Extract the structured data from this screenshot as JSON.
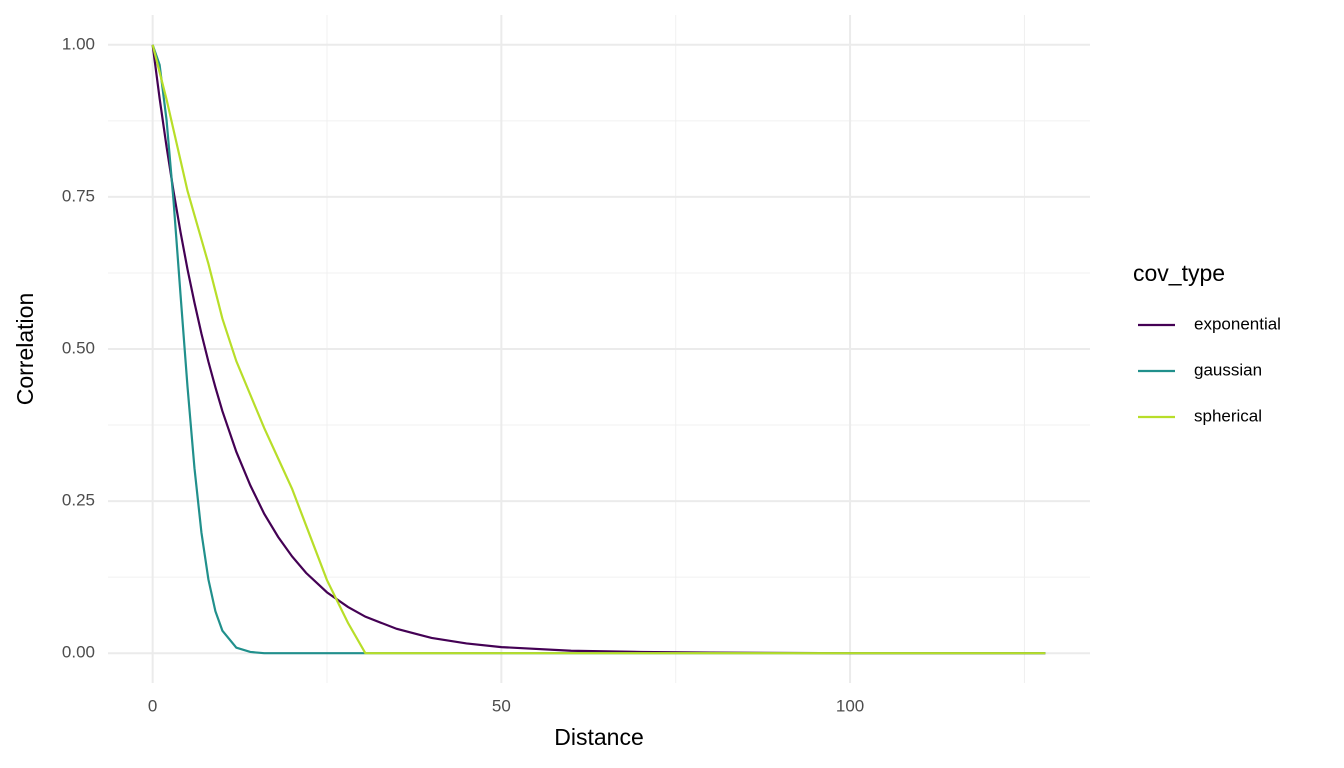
{
  "chart_data": {
    "type": "line",
    "x_label": "Distance",
    "y_label": "Correlation",
    "legend_title": "cov_type",
    "legend_position": "right",
    "x": [
      0,
      1,
      2,
      3,
      4,
      5,
      6,
      7,
      8,
      9,
      10,
      12,
      14,
      16,
      18,
      20,
      22,
      25,
      28,
      30.5,
      35,
      40,
      45,
      50,
      60,
      70,
      80,
      100,
      128
    ],
    "series": [
      {
        "name": "exponential",
        "color": "#440154",
        "values": [
          1,
          0.912,
          0.832,
          0.759,
          0.692,
          0.631,
          0.576,
          0.525,
          0.479,
          0.437,
          0.398,
          0.331,
          0.276,
          0.229,
          0.191,
          0.159,
          0.132,
          0.1,
          0.076,
          0.06,
          0.04,
          0.025,
          0.016,
          0.01,
          0.004,
          0.002,
          0.001,
          0,
          0
        ]
      },
      {
        "name": "gaussian",
        "color": "#21908c",
        "values": [
          1,
          0.967,
          0.876,
          0.743,
          0.589,
          0.438,
          0.304,
          0.198,
          0.121,
          0.069,
          0.037,
          0.009,
          0.002,
          0,
          0,
          0,
          0,
          0,
          0,
          0,
          0,
          0,
          0,
          0,
          0,
          0,
          0,
          0,
          0
        ]
      },
      {
        "name": "spherical",
        "color": "#b8de29",
        "values": [
          1,
          0.955,
          0.91,
          0.86,
          0.81,
          0.76,
          0.72,
          0.68,
          0.64,
          0.595,
          0.55,
          0.48,
          0.425,
          0.37,
          0.32,
          0.27,
          0.21,
          0.12,
          0.05,
          0,
          0,
          0,
          0,
          0,
          0,
          0,
          0,
          0,
          0
        ]
      }
    ],
    "xlim": [
      -6.4,
      134.4
    ],
    "ylim": [
      -0.049,
      1.049
    ],
    "xticks": [
      0,
      50,
      100
    ],
    "yticks": [
      {
        "value": 0,
        "label": "0.00"
      },
      {
        "value": 0.25,
        "label": "0.25"
      },
      {
        "value": 0.5,
        "label": "0.50"
      },
      {
        "value": 0.75,
        "label": "0.75"
      },
      {
        "value": 1,
        "label": "1.00"
      }
    ],
    "x_minor_grid": [
      25,
      75,
      125
    ],
    "y_minor_grid": [
      0.125,
      0.375,
      0.625,
      0.875
    ],
    "grid": true
  }
}
